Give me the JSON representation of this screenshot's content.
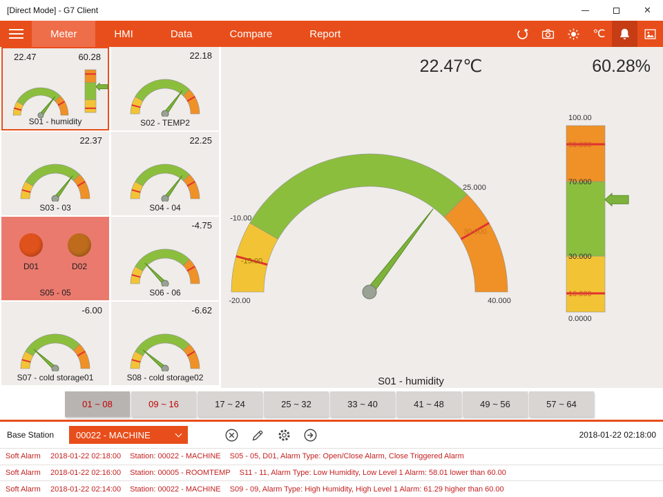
{
  "window": {
    "title": "[Direct Mode] - G7 Client"
  },
  "nav": {
    "tabs": [
      {
        "label": "Meter",
        "active": true
      },
      {
        "label": "HMI",
        "active": false
      },
      {
        "label": "Data",
        "active": false
      },
      {
        "label": "Compare",
        "active": false
      },
      {
        "label": "Report",
        "active": false
      }
    ],
    "icons": [
      {
        "name": "refresh-icon",
        "active": false
      },
      {
        "name": "camera-icon",
        "active": false
      },
      {
        "name": "brightness-icon",
        "active": false
      },
      {
        "name": "celsius-unit",
        "label": "℃",
        "active": false
      },
      {
        "name": "alarm-bell-icon",
        "active": true
      },
      {
        "name": "snapshot-icon",
        "active": false
      }
    ]
  },
  "colors": {
    "accent": "#E84E1B",
    "gauge_green": "#8CBE3E",
    "gauge_yellow": "#F2C435",
    "gauge_orange": "#EF9126",
    "tick_red": "#E03030",
    "needle_green": "#7DB33C",
    "alarm_text": "#C41E1E",
    "alarm_tile": "#EA7A6E"
  },
  "tiles": [
    {
      "id": "s01",
      "type": "gauge-bar",
      "label": "S01 - humidity",
      "value_text": "22.47",
      "value2_text": "60.28",
      "gauge_value": 22.47,
      "bar_value": 60.28,
      "min": -20,
      "max": 40,
      "selected": true
    },
    {
      "id": "s02",
      "type": "gauge",
      "label": "S02 - TEMP2",
      "value_text": "22.18",
      "gauge_value": 22.18,
      "min": -20,
      "max": 40
    },
    {
      "id": "s03",
      "type": "gauge",
      "label": "S03 - 03",
      "value_text": "22.37",
      "gauge_value": 22.37,
      "min": -20,
      "max": 40
    },
    {
      "id": "s04",
      "type": "gauge",
      "label": "S04 - 04",
      "value_text": "22.25",
      "gauge_value": 22.25,
      "min": -20,
      "max": 40
    },
    {
      "id": "s05",
      "type": "indicator",
      "label": "S05 - 05",
      "alarm": true,
      "indicators": [
        {
          "label": "D01",
          "color": "#E0521C"
        },
        {
          "label": "D02",
          "color": "#BE6C1C"
        }
      ]
    },
    {
      "id": "s06",
      "type": "gauge",
      "label": "S06 - 06",
      "value_text": "-4.75",
      "gauge_value": -4.75,
      "min": -20,
      "max": 40
    },
    {
      "id": "s07",
      "type": "gauge",
      "label": "S07 - cold storage01",
      "value_text": "-6.00",
      "gauge_value": -6.0,
      "min": -20,
      "max": 40
    },
    {
      "id": "s08",
      "type": "gauge",
      "label": "S08 - cold storage02",
      "value_text": "-6.62",
      "gauge_value": -6.62,
      "min": -20,
      "max": 40
    }
  ],
  "main": {
    "temp_reading": "22.47℃",
    "humidity_reading": "60.28%",
    "selected_label": "S01 - humidity",
    "gauge": {
      "min": -20,
      "max": 40,
      "value": 22.47,
      "labels": [
        {
          "text": "-20.00",
          "value": -20,
          "placement": "below",
          "color": "#333333"
        },
        {
          "text": "-15.00",
          "value": -15,
          "placement": "mid",
          "color": "#8A6D00"
        },
        {
          "text": "-10.00",
          "value": -10,
          "placement": "outside",
          "color": "#333333"
        },
        {
          "text": "25.000",
          "value": 25,
          "placement": "outside",
          "color": "#333333"
        },
        {
          "text": "30.000",
          "value": 30,
          "placement": "mid",
          "color": "#C9741C"
        },
        {
          "text": "40.000",
          "value": 40,
          "placement": "below",
          "color": "#333333"
        }
      ]
    },
    "bar": {
      "min": 0,
      "max": 100,
      "value": 60.28,
      "labels": [
        {
          "text": "100.00",
          "value": 100,
          "color": "#333333"
        },
        {
          "text": "90.000",
          "value": 90,
          "color": "#D05030"
        },
        {
          "text": "70.000",
          "value": 70,
          "color": "#333333"
        },
        {
          "text": "30.000",
          "value": 30,
          "color": "#333333"
        },
        {
          "text": "10.000",
          "value": 10,
          "color": "#D05030"
        },
        {
          "text": "0.0000",
          "value": 0,
          "color": "#333333"
        }
      ]
    }
  },
  "range_tabs": [
    {
      "label": "01 ~ 08",
      "active": true,
      "alarm": true
    },
    {
      "label": "09 ~ 16",
      "active": false,
      "alarm": true
    },
    {
      "label": "17 ~ 24",
      "active": false,
      "alarm": false
    },
    {
      "label": "25 ~ 32",
      "active": false,
      "alarm": false
    },
    {
      "label": "33 ~ 40",
      "active": false,
      "alarm": false
    },
    {
      "label": "41 ~ 48",
      "active": false,
      "alarm": false
    },
    {
      "label": "49 ~ 56",
      "active": false,
      "alarm": false
    },
    {
      "label": "57 ~ 64",
      "active": false,
      "alarm": false
    }
  ],
  "footer": {
    "base_station_label": "Base Station",
    "station_value": "00022 - MACHINE",
    "timestamp": "2018-01-22 02:18:00",
    "icons": [
      {
        "name": "cancel-icon"
      },
      {
        "name": "edit-icon"
      },
      {
        "name": "settings-icon"
      },
      {
        "name": "go-icon"
      }
    ]
  },
  "alarms": [
    {
      "type": "Soft Alarm",
      "time": "2018-01-22 02:18:00",
      "station": "Station: 00022 - MACHINE",
      "detail": "S05 - 05, D01, Alarm Type: Open/Close Alarm, Close Triggered Alarm"
    },
    {
      "type": "Soft Alarm",
      "time": "2018-01-22 02:16:00",
      "station": "Station: 00005 - ROOMTEMP",
      "detail": "S11 - 11, Alarm Type: Low Humidity, Low Level 1 Alarm: 58.01 lower than 60.00"
    },
    {
      "type": "Soft Alarm",
      "time": "2018-01-22 02:14:00",
      "station": "Station: 00022 - MACHINE",
      "detail": "S09 - 09, Alarm Type: High Humidity, High Level 1 Alarm: 61.29 higher than 60.00"
    }
  ]
}
